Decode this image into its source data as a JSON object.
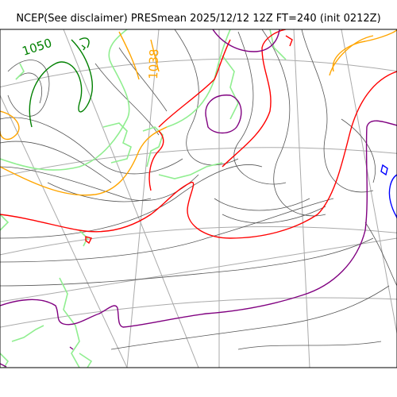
{
  "title": "NCEP(See disclaimer) PRESmean 2025/12/12 12Z FT=240 (init 0212Z)",
  "contour_labels": {
    "high": "1050",
    "mid": "1038"
  },
  "colors": {
    "isobar": "#555555",
    "graticule": "#aaaaaa",
    "coastline": "#90ee90",
    "contour_1050": "#008000",
    "contour_1038": "#ffa500",
    "contour_red": "#ff0000",
    "contour_purple": "#800080",
    "contour_blue": "#0000ff"
  }
}
